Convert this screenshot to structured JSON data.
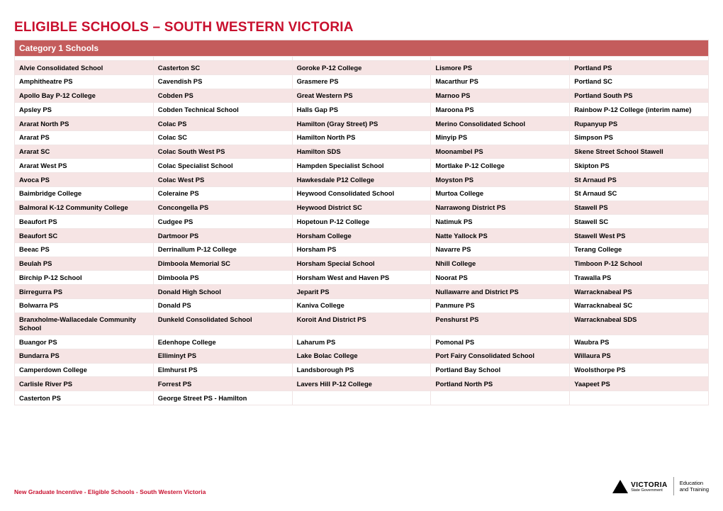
{
  "title": "ELIGIBLE SCHOOLS – SOUTH WESTERN VICTORIA",
  "categoryHeader": "Category 1 Schools",
  "footer": "New Graduate Incentive - Eligible Schools - South Western Victoria",
  "logo": {
    "brand": "VICTORIA",
    "sub": "State Government",
    "dept1": "Education",
    "dept2": "and Training"
  },
  "colors": {
    "accent": "#c8102e",
    "headerBg": "#c45c5c",
    "rowOdd": "#f6e4e4",
    "rowEven": "#ffffff",
    "border": "#f0e4e4"
  },
  "table": {
    "columns": 5,
    "rows": [
      [
        "Alvie Consolidated School",
        "Casterton SC",
        "Goroke P-12 College",
        "Lismore PS",
        "Portland PS"
      ],
      [
        "Amphitheatre PS",
        "Cavendish PS",
        "Grasmere PS",
        "Macarthur PS",
        "Portland SC"
      ],
      [
        "Apollo Bay P-12 College",
        "Cobden PS",
        "Great Western PS",
        "Marnoo PS",
        "Portland South PS"
      ],
      [
        "Apsley PS",
        "Cobden Technical School",
        "Halls Gap PS",
        "Maroona PS",
        "Rainbow P-12 College (interim name)"
      ],
      [
        "Ararat North PS",
        "Colac PS",
        "Hamilton (Gray Street) PS",
        "Merino Consolidated School",
        "Rupanyup PS"
      ],
      [
        "Ararat PS",
        "Colac SC",
        "Hamilton North PS",
        "Minyip PS",
        "Simpson PS"
      ],
      [
        "Ararat SC",
        "Colac South West PS",
        "Hamilton SDS",
        "Moonambel PS",
        "Skene Street School Stawell"
      ],
      [
        "Ararat West PS",
        "Colac Specialist School",
        "Hampden Specialist School",
        "Mortlake P-12 College",
        "Skipton PS"
      ],
      [
        "Avoca PS",
        "Colac West PS",
        "Hawkesdale P12 College",
        "Moyston PS",
        "St Arnaud PS"
      ],
      [
        "Baimbridge College",
        "Coleraine PS",
        "Heywood Consolidated School",
        "Murtoa College",
        "St Arnaud SC"
      ],
      [
        "Balmoral K-12 Community College",
        "Concongella PS",
        "Heywood District SC",
        "Narrawong District PS",
        "Stawell PS"
      ],
      [
        "Beaufort PS",
        "Cudgee PS",
        "Hopetoun P-12 College",
        "Natimuk PS",
        "Stawell SC"
      ],
      [
        "Beaufort SC",
        "Dartmoor PS",
        "Horsham College",
        "Natte Yallock PS",
        "Stawell West PS"
      ],
      [
        "Beeac PS",
        "Derrinallum P-12 College",
        "Horsham PS",
        "Navarre PS",
        "Terang College"
      ],
      [
        "Beulah PS",
        "Dimboola Memorial SC",
        "Horsham Special School",
        "Nhill College",
        "Timboon P-12 School"
      ],
      [
        "Birchip P-12 School",
        "Dimboola PS",
        "Horsham West and Haven PS",
        "Noorat PS",
        "Trawalla PS"
      ],
      [
        "Birregurra PS",
        "Donald High School",
        "Jeparit PS",
        "Nullawarre and District PS",
        "Warracknabeal PS"
      ],
      [
        "Bolwarra PS",
        "Donald PS",
        "Kaniva College",
        "Panmure PS",
        "Warracknabeal SC"
      ],
      [
        "Branxholme-Wallacedale Community School",
        "Dunkeld Consolidated School",
        "Koroit And District PS",
        "Penshurst PS",
        "Warracknabeal SDS"
      ],
      [
        "Buangor PS",
        "Edenhope College",
        "Laharum PS",
        "Pomonal PS",
        "Waubra PS"
      ],
      [
        "Bundarra PS",
        "Elliminyt PS",
        "Lake Bolac College",
        "Port Fairy Consolidated School",
        "Willaura PS"
      ],
      [
        "Camperdown College",
        "Elmhurst PS",
        "Landsborough PS",
        "Portland Bay School",
        "Woolsthorpe PS"
      ],
      [
        "Carlisle River PS",
        "Forrest PS",
        "Lavers Hill P-12 College",
        "Portland North PS",
        "Yaapeet PS"
      ],
      [
        "Casterton PS",
        "George Street PS - Hamilton",
        "",
        "",
        ""
      ]
    ]
  }
}
